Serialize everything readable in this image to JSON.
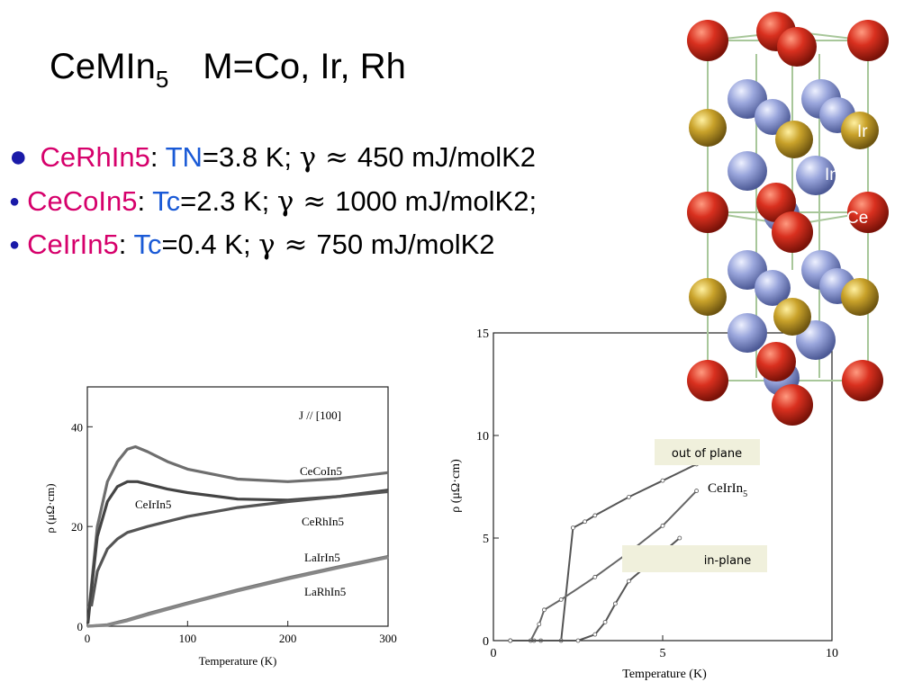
{
  "slide": {
    "title_main": "CeMIn",
    "title_sub": "5",
    "title_rest": "M=Co, Ir, Rh",
    "bullets": [
      {
        "compound": "CeRhIn5",
        "sep": ":",
        "symbol": "TN",
        "rest": "=3.8 K; ",
        "gamma": "γ ≈ ",
        "value": "450 mJ/molK2"
      },
      {
        "compound": "CeCoIn5",
        "sep": ":",
        "symbol": "Tc",
        "rest": "=2.3 K; ",
        "gamma": "γ ≈ ",
        "value": " 1000 mJ/molK2;"
      },
      {
        "compound": "CeIrIn5",
        "sep": ":",
        "symbol": "Tc",
        "rest": "=0.4 K; ",
        "gamma": "γ ≈ ",
        "value": "750 mJ/molK2"
      }
    ]
  },
  "crystal": {
    "labels": {
      "ir": "Ir",
      "in": "In",
      "ce": "Ce"
    },
    "colors": {
      "ce": "#d9301f",
      "in": "#9aa6dc",
      "ir": "#c9a22a",
      "bond": "#a8c79a"
    }
  },
  "chart_data": [
    {
      "type": "line",
      "annotation": "J // [100]",
      "xlabel": "Temperature (K)",
      "ylabel": "ρ (μΩ·cm)",
      "xlim": [
        0,
        300
      ],
      "ylim": [
        0,
        48
      ],
      "xticks": [
        0,
        100,
        200,
        300
      ],
      "yticks": [
        0,
        20,
        40
      ],
      "series": [
        {
          "name": "CeCoIn5",
          "x": [
            2,
            5,
            10,
            20,
            30,
            40,
            48,
            60,
            80,
            100,
            150,
            200,
            250,
            300
          ],
          "y": [
            4,
            10,
            20,
            29,
            33,
            35.5,
            36,
            35,
            33,
            31.5,
            29.5,
            29,
            29.6,
            30.8
          ]
        },
        {
          "name": "CeIrIn5",
          "x": [
            0.5,
            5,
            10,
            20,
            30,
            40,
            50,
            60,
            80,
            100,
            150,
            200,
            250,
            300
          ],
          "y": [
            0.5,
            9,
            18,
            25,
            28,
            29,
            29,
            28.5,
            27.5,
            26.8,
            25.5,
            25.3,
            26,
            27.3
          ]
        },
        {
          "name": "CeRhIn5",
          "x": [
            4,
            10,
            20,
            30,
            40,
            60,
            80,
            100,
            150,
            200,
            250,
            300
          ],
          "y": [
            4,
            11,
            15.5,
            17.5,
            18.8,
            20,
            21,
            22,
            23.8,
            25,
            26,
            27
          ]
        },
        {
          "name": "LaIrIn5",
          "x": [
            0,
            20,
            40,
            60,
            100,
            150,
            200,
            250,
            300
          ],
          "y": [
            0,
            0.3,
            1.3,
            2.5,
            4.7,
            7.3,
            9.7,
            11.9,
            14
          ]
        },
        {
          "name": "LaRhIn5",
          "x": [
            0,
            20,
            40,
            60,
            100,
            150,
            200,
            250,
            300
          ],
          "y": [
            0,
            0.2,
            1.1,
            2.3,
            4.5,
            7.1,
            9.5,
            11.7,
            13.8
          ]
        }
      ]
    },
    {
      "type": "line",
      "xlabel": "Temperature (K)",
      "ylabel": "ρ (μΩ·cm)",
      "xlim": [
        0,
        10
      ],
      "ylim": [
        0,
        15
      ],
      "xticks": [
        0,
        5,
        10
      ],
      "yticks": [
        0,
        5,
        10,
        15
      ],
      "labels": {
        "curve": "CeIrIn",
        "curve_sub": "5",
        "out_of_plane": "out of plane",
        "in_plane": "in-plane"
      },
      "series": [
        {
          "name": "out of plane",
          "x": [
            0.5,
            1.2,
            1.4,
            2.0,
            2.35,
            2.7,
            3,
            4,
            5,
            6
          ],
          "y": [
            0,
            0,
            0,
            0,
            5.5,
            5.8,
            6.1,
            7.0,
            7.8,
            8.6
          ]
        },
        {
          "name": "CeIrIn5",
          "x": [
            0.5,
            1.1,
            1.35,
            1.5,
            2,
            3,
            4,
            5,
            6
          ],
          "y": [
            0,
            0,
            0.8,
            1.5,
            2.0,
            3.1,
            4.3,
            5.6,
            7.3
          ]
        },
        {
          "name": "in-plane",
          "x": [
            0.5,
            2.5,
            3,
            3.3,
            3.6,
            4,
            4.5,
            5,
            5.5
          ],
          "y": [
            0,
            0,
            0.3,
            0.9,
            1.8,
            2.9,
            3.6,
            4.3,
            5.0
          ]
        }
      ]
    }
  ]
}
